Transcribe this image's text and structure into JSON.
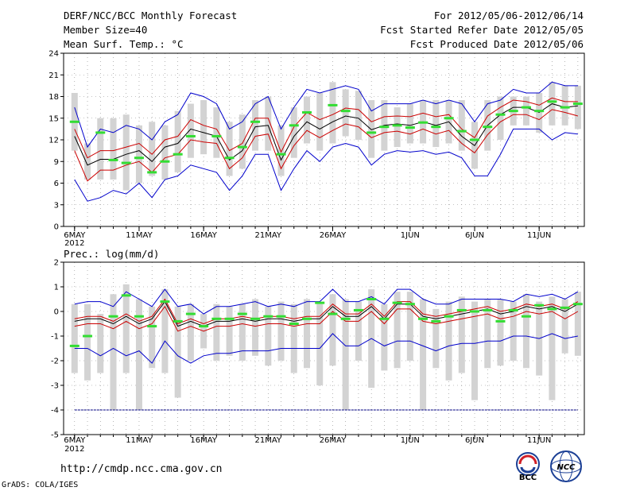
{
  "header": {
    "title": "DERF/NCC/BCC Monthly Forecast",
    "member_size": "Member Size=40",
    "variable": "Mean Surf. Temp.: °C",
    "period": "For 2012/05/06-2012/06/14",
    "start_date": "Fcst Started Refer Date 2012/05/05",
    "produced_date": "Fcst Produced Date 2012/05/06"
  },
  "footer": {
    "url": "http://cmdp.ncc.cma.gov.cn",
    "credit": "GrADS: COLA/IGES",
    "logo_bcc": "BCC",
    "logo_ncc": "NCC"
  },
  "colors": {
    "grid": "#888888",
    "box": "#d3d3d3",
    "ens_mean": "#000000",
    "inner_band": "#cc0000",
    "outer_band": "#0000cc",
    "observed": "#33dd33",
    "ref_line": "#000080"
  },
  "chart_data": [
    {
      "type": "line",
      "title": "Mean Surf. Temp.: °C",
      "xlabel": "",
      "ylabel": "°C",
      "ylim": [
        0,
        24
      ],
      "yticks": [
        0,
        3,
        6,
        9,
        12,
        15,
        18,
        21,
        24
      ],
      "x": [
        1,
        2,
        3,
        4,
        5,
        6,
        7,
        8,
        9,
        10,
        11,
        12,
        13,
        14,
        15,
        16,
        17,
        18,
        19,
        20,
        21,
        22,
        23,
        24,
        25,
        26,
        27,
        28,
        29,
        30,
        31,
        32,
        33,
        34,
        35,
        36,
        37,
        38,
        39,
        40
      ],
      "xtick_labels": [
        {
          "day": 1,
          "label": "6MAY"
        },
        {
          "day": 6,
          "label": "11MAY"
        },
        {
          "day": 11,
          "label": "16MAY"
        },
        {
          "day": 16,
          "label": "21MAY"
        },
        {
          "day": 21,
          "label": "26MAY"
        },
        {
          "day": 27,
          "label": "1JUN"
        },
        {
          "day": 32,
          "label": "6JUN"
        },
        {
          "day": 37,
          "label": "11JUN"
        }
      ],
      "year_label": "2012",
      "series": [
        {
          "name": "ensemble mean",
          "values": [
            12.5,
            8.5,
            9.3,
            9.3,
            10,
            10.5,
            9,
            11,
            11.5,
            13.5,
            13,
            12.5,
            9.2,
            10.5,
            13.8,
            14,
            9.2,
            12.5,
            14.5,
            13.5,
            14.5,
            15.3,
            15,
            13.4,
            14,
            14.2,
            14,
            14.5,
            14,
            14.5,
            12.5,
            11.2,
            14,
            15.5,
            16.5,
            16.5,
            15.8,
            17,
            16.5,
            16.7
          ]
        },
        {
          "name": "upper inner",
          "values": [
            13.5,
            9.5,
            10.5,
            10.5,
            11,
            11.5,
            10,
            12,
            12.5,
            14.8,
            14,
            13.5,
            10.5,
            11.5,
            15,
            15,
            10.3,
            13.8,
            15.8,
            14.8,
            15.5,
            16.4,
            16.2,
            14.5,
            15.2,
            15.3,
            15.2,
            15.7,
            15.2,
            15.5,
            13.5,
            12.3,
            15.3,
            16.5,
            17.5,
            17.3,
            16.8,
            17.8,
            17.3,
            17.3
          ]
        },
        {
          "name": "lower inner",
          "values": [
            10.5,
            6.3,
            7.8,
            7.8,
            8.5,
            9,
            7.5,
            9.5,
            10,
            12,
            11.7,
            11.5,
            8,
            9.5,
            12.5,
            12.8,
            8,
            11.2,
            13.3,
            12.3,
            13.3,
            14.2,
            13.8,
            12.3,
            13,
            13.2,
            12.8,
            13.5,
            12.8,
            13.3,
            11.5,
            10.2,
            12.7,
            14.5,
            15.5,
            15.5,
            14.8,
            16.2,
            15.8,
            15.3
          ]
        },
        {
          "name": "max",
          "values": [
            16.5,
            11,
            13.5,
            13,
            14,
            13.5,
            12,
            14.5,
            15.5,
            18.5,
            18,
            17,
            13.5,
            14.5,
            17,
            18,
            13.5,
            16.5,
            19,
            18.5,
            19,
            19.5,
            19,
            16,
            17,
            17,
            17,
            17.5,
            17,
            17.5,
            17,
            14.5,
            17,
            17.5,
            19,
            18.5,
            18.5,
            20,
            19.5,
            19.5
          ]
        },
        {
          "name": "min",
          "values": [
            6.5,
            3.5,
            4,
            5,
            4.5,
            6,
            4,
            6.5,
            7,
            8.5,
            8,
            7.5,
            5,
            7,
            10,
            10,
            5,
            8,
            10.5,
            9,
            11,
            11.5,
            11,
            8.5,
            10,
            10.5,
            10.3,
            10.5,
            10,
            10.3,
            9.5,
            7,
            7,
            10,
            13.5,
            13.5,
            13.5,
            12,
            13,
            12.8
          ]
        },
        {
          "name": "observed",
          "values": [
            14.5,
            null,
            13,
            9.2,
            8.8,
            9.5,
            7.5,
            9,
            10,
            12.5,
            null,
            12.5,
            9.5,
            11,
            14.5,
            null,
            10,
            14,
            15.8,
            null,
            16.8,
            16,
            null,
            13,
            13.8,
            14,
            13.7,
            14.4,
            13.8,
            15,
            13.2,
            12,
            13.8,
            15.5,
            16,
            16.5,
            16,
            17.3,
            16.5,
            17
          ]
        },
        {
          "name": "box top",
          "values": [
            18.5,
            11.5,
            15,
            15,
            15.5,
            14,
            14.5,
            14,
            16,
            17,
            17.5,
            16.5,
            14.5,
            15.5,
            17.5,
            18,
            14,
            16.5,
            18,
            18.5,
            20,
            19,
            18.8,
            17.5,
            17.5,
            16.5,
            17,
            17.5,
            17.5,
            17.5,
            17.5,
            14.5,
            17.5,
            18,
            18,
            18,
            18.5,
            20,
            19.5,
            19.5
          ]
        },
        {
          "name": "box bottom",
          "values": [
            10.5,
            6.5,
            6.5,
            6.5,
            5,
            6,
            7,
            6.5,
            7.5,
            9.5,
            10,
            9.5,
            7,
            8,
            10.5,
            10.5,
            7,
            9.5,
            11.5,
            10.5,
            11.5,
            12.5,
            12,
            9.5,
            10.5,
            11,
            11.5,
            11.5,
            11,
            11.5,
            10.5,
            8,
            10.5,
            12,
            14,
            14,
            13,
            14,
            14,
            13.5
          ]
        }
      ]
    },
    {
      "type": "line",
      "title": "Prec.: log(mm/d)",
      "xlabel": "",
      "ylabel": "log(mm/d)",
      "ylim": [
        -5,
        2
      ],
      "yticks": [
        -5,
        -4,
        -3,
        -2,
        -1,
        0,
        1,
        2
      ],
      "reference_line": -4,
      "x": [
        1,
        2,
        3,
        4,
        5,
        6,
        7,
        8,
        9,
        10,
        11,
        12,
        13,
        14,
        15,
        16,
        17,
        18,
        19,
        20,
        21,
        22,
        23,
        24,
        25,
        26,
        27,
        28,
        29,
        30,
        31,
        32,
        33,
        34,
        35,
        36,
        37,
        38,
        39,
        40
      ],
      "xtick_labels": [
        {
          "day": 1,
          "label": "6MAY"
        },
        {
          "day": 6,
          "label": "11MAY"
        },
        {
          "day": 11,
          "label": "16MAY"
        },
        {
          "day": 16,
          "label": "21MAY"
        },
        {
          "day": 21,
          "label": "26MAY"
        },
        {
          "day": 27,
          "label": "1JUN"
        },
        {
          "day": 32,
          "label": "6JUN"
        },
        {
          "day": 37,
          "label": "11JUN"
        }
      ],
      "year_label": "2012",
      "series": [
        {
          "name": "ensemble mean",
          "values": [
            -0.4,
            -0.3,
            -0.3,
            -0.5,
            -0.2,
            -0.5,
            -0.3,
            0.4,
            -0.6,
            -0.4,
            -0.6,
            -0.4,
            -0.4,
            -0.3,
            -0.4,
            -0.3,
            -0.3,
            -0.4,
            -0.3,
            -0.3,
            0.2,
            -0.2,
            -0.2,
            0.2,
            -0.3,
            0.3,
            0.3,
            -0.2,
            -0.3,
            -0.2,
            -0.1,
            0,
            0.1,
            -0.1,
            0,
            0.2,
            0.1,
            0.2,
            0,
            0.3
          ]
        },
        {
          "name": "upper inner",
          "values": [
            -0.3,
            -0.2,
            -0.2,
            -0.4,
            -0.1,
            -0.4,
            -0.2,
            0.5,
            -0.5,
            -0.3,
            -0.5,
            -0.3,
            -0.3,
            -0.2,
            -0.3,
            -0.2,
            -0.2,
            -0.3,
            -0.2,
            -0.2,
            0.3,
            -0.1,
            -0.1,
            0.3,
            -0.2,
            0.4,
            0.4,
            -0.1,
            -0.2,
            -0.1,
            0,
            0.1,
            0.2,
            0,
            0.1,
            0.3,
            0.2,
            0.3,
            0.1,
            0.4
          ]
        },
        {
          "name": "lower inner",
          "values": [
            -0.6,
            -0.5,
            -0.5,
            -0.7,
            -0.4,
            -0.7,
            -0.5,
            0.2,
            -0.8,
            -0.6,
            -0.8,
            -0.6,
            -0.6,
            -0.5,
            -0.6,
            -0.5,
            -0.5,
            -0.6,
            -0.5,
            -0.5,
            0,
            -0.4,
            -0.4,
            0,
            -0.5,
            0.1,
            0.1,
            -0.4,
            -0.5,
            -0.4,
            -0.3,
            -0.2,
            -0.1,
            -0.3,
            -0.2,
            0,
            -0.1,
            0,
            -0.3,
            0
          ]
        },
        {
          "name": "max",
          "values": [
            0.3,
            0.4,
            0.4,
            0.2,
            0.8,
            0.5,
            0.2,
            0.9,
            0.2,
            0.3,
            -0.1,
            0.2,
            0.2,
            0.3,
            0.4,
            0.2,
            0.3,
            0.2,
            0.4,
            0.4,
            0.9,
            0.4,
            0.4,
            0.6,
            0.3,
            0.9,
            0.9,
            0.5,
            0.3,
            0.3,
            0.5,
            0.5,
            0.5,
            0.5,
            0.4,
            0.7,
            0.6,
            0.7,
            0.5,
            0.8
          ]
        },
        {
          "name": "min",
          "values": [
            -1.5,
            -1.5,
            -1.8,
            -1.5,
            -1.8,
            -1.6,
            -2.1,
            -1.2,
            -1.8,
            -2.1,
            -1.8,
            -1.7,
            -1.7,
            -1.6,
            -1.6,
            -1.6,
            -1.5,
            -1.5,
            -1.5,
            -1.5,
            -0.9,
            -1.4,
            -1.4,
            -1.1,
            -1.4,
            -1.2,
            -1.2,
            -1.4,
            -1.6,
            -1.4,
            -1.3,
            -1.3,
            -1.2,
            -1.2,
            -1,
            -1,
            -1.1,
            -0.9,
            -1.1,
            -1
          ]
        },
        {
          "name": "observed",
          "values": [
            -1.4,
            -1,
            null,
            -0.2,
            0.65,
            -0.2,
            -0.6,
            0.4,
            -0.4,
            -0.1,
            -0.6,
            -0.3,
            -0.3,
            -0.1,
            -0.3,
            -0.2,
            -0.2,
            -0.5,
            -0.3,
            0.35,
            -0.1,
            -0.3,
            0.05,
            0.5,
            -0.3,
            0.35,
            0.3,
            -0.3,
            -0.4,
            -0.2,
            0.05,
            0,
            0.05,
            -0.4,
            0.05,
            -0.2,
            0.25,
            0.1,
            0.15,
            0.3
          ]
        },
        {
          "name": "box top",
          "values": [
            0.3,
            0.3,
            -0.1,
            0.7,
            1.1,
            0.5,
            0.2,
            0.9,
            0.2,
            0.3,
            -0.1,
            0.3,
            0.2,
            0.3,
            0.5,
            0.2,
            0.4,
            0.3,
            0.5,
            0.3,
            0.7,
            0.5,
            0.4,
            0.9,
            0.3,
            0.8,
            0.8,
            0.5,
            0.1,
            0.4,
            0.6,
            0.4,
            0.5,
            0.5,
            0.4,
            0.7,
            0.4,
            0.6,
            0.5,
            0.8
          ]
        },
        {
          "name": "box bottom",
          "values": [
            -2.5,
            -2.8,
            -2.5,
            -4,
            -2.5,
            -4,
            -2.3,
            -2.5,
            -3.5,
            -2,
            -1.5,
            -2,
            -1.8,
            -2,
            -1.8,
            -2.2,
            -2,
            -2.5,
            -2.3,
            -3,
            -2.2,
            -4,
            -2,
            -3.1,
            -2.4,
            -2.3,
            -2,
            -4,
            -2.3,
            -2.8,
            -2.5,
            -3.6,
            -2.3,
            -2.2,
            -2,
            -2.3,
            -2.6,
            -3.6,
            -1.7,
            -1.8
          ]
        }
      ]
    }
  ]
}
